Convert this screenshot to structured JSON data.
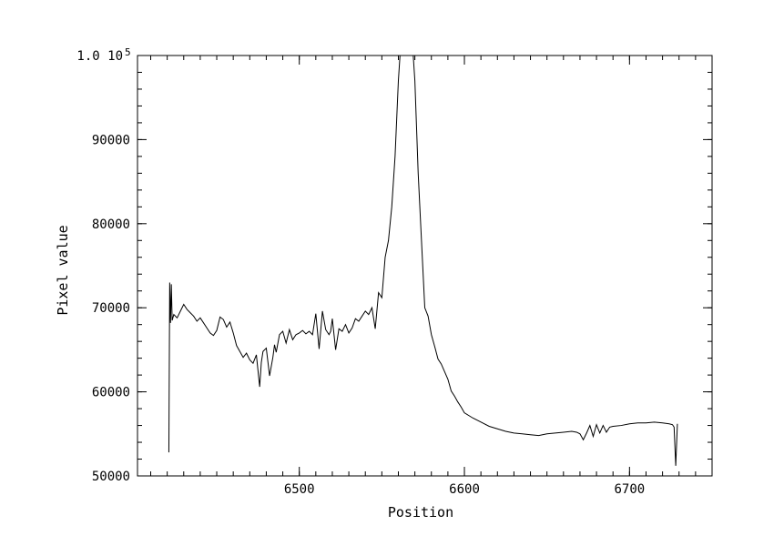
{
  "chart_data": {
    "type": "line",
    "xlabel": "Position",
    "ylabel": "Pixel value",
    "xlim": [
      6402,
      6750
    ],
    "ylim": [
      50000,
      100000
    ],
    "x_ticks": [
      6500,
      6600,
      6700
    ],
    "x_tick_labels": [
      "6500",
      "6600",
      "6700"
    ],
    "y_ticks": [
      50000,
      60000,
      70000,
      80000,
      90000,
      100000
    ],
    "y_tick_labels": [
      "50000",
      "60000",
      "70000",
      "80000",
      "90000",
      "1.0 10"
    ],
    "y_top_exponent": "5",
    "grid": false,
    "line_color": "#000000",
    "series": [
      {
        "x": [
          6421,
          6421.5,
          6422,
          6422.5,
          6423,
          6424,
          6426,
          6428,
          6430,
          6432,
          6434,
          6436,
          6438,
          6440,
          6442,
          6444,
          6446,
          6448,
          6450,
          6452,
          6454,
          6456,
          6458,
          6460,
          6462,
          6464,
          6466,
          6468,
          6470,
          6472,
          6474,
          6476,
          6477,
          6478,
          6480,
          6482,
          6484,
          6485,
          6486,
          6488,
          6490,
          6492,
          6494,
          6496,
          6498,
          6500,
          6502,
          6504,
          6506,
          6508,
          6510,
          6512,
          6514,
          6516,
          6518,
          6519,
          6520,
          6522,
          6524,
          6526,
          6528,
          6530,
          6532,
          6534,
          6536,
          6538,
          6540,
          6542,
          6544,
          6546,
          6548,
          6550,
          6552,
          6554,
          6556,
          6558,
          6560,
          6561,
          6569,
          6570,
          6572,
          6574,
          6576,
          6578,
          6580,
          6582,
          6584,
          6586,
          6588,
          6590,
          6592,
          6594,
          6596,
          6598,
          6600,
          6605,
          6610,
          6615,
          6620,
          6625,
          6630,
          6635,
          6640,
          6645,
          6650,
          6655,
          6660,
          6665,
          6668,
          6670,
          6672,
          6674,
          6676,
          6678,
          6680,
          6682,
          6684,
          6686,
          6688,
          6690,
          6695,
          6700,
          6705,
          6710,
          6715,
          6720,
          6724,
          6726,
          6727,
          6728,
          6729
        ],
        "values": [
          52800,
          73000,
          68200,
          72800,
          68500,
          69200,
          68800,
          69600,
          70400,
          69800,
          69400,
          69000,
          68400,
          68800,
          68200,
          67600,
          67000,
          66700,
          67300,
          68900,
          68600,
          67700,
          68300,
          67000,
          65500,
          64800,
          64100,
          64600,
          63800,
          63400,
          64400,
          60600,
          63500,
          64800,
          65200,
          61900,
          64100,
          65600,
          64700,
          66800,
          67200,
          65800,
          67400,
          66200,
          66800,
          67000,
          67300,
          66900,
          67200,
          66800,
          69300,
          65100,
          69600,
          67400,
          66800,
          67200,
          68700,
          65000,
          67500,
          67200,
          68000,
          67000,
          67600,
          68700,
          68400,
          69000,
          69600,
          69200,
          70000,
          67500,
          71800,
          71200,
          76000,
          78000,
          82000,
          88000,
          97000,
          100000,
          100000,
          97000,
          86000,
          78000,
          70000,
          69000,
          66800,
          65400,
          63900,
          63300,
          62400,
          61500,
          60100,
          59500,
          58800,
          58200,
          57500,
          56900,
          56400,
          55900,
          55600,
          55300,
          55100,
          55000,
          54900,
          54800,
          55000,
          55100,
          55200,
          55300,
          55200,
          55000,
          54300,
          55100,
          56000,
          54700,
          56100,
          55100,
          56000,
          55200,
          55800,
          55900,
          56000,
          56200,
          56300,
          56300,
          56400,
          56300,
          56200,
          56100,
          55800,
          51200,
          56200
        ]
      }
    ]
  }
}
